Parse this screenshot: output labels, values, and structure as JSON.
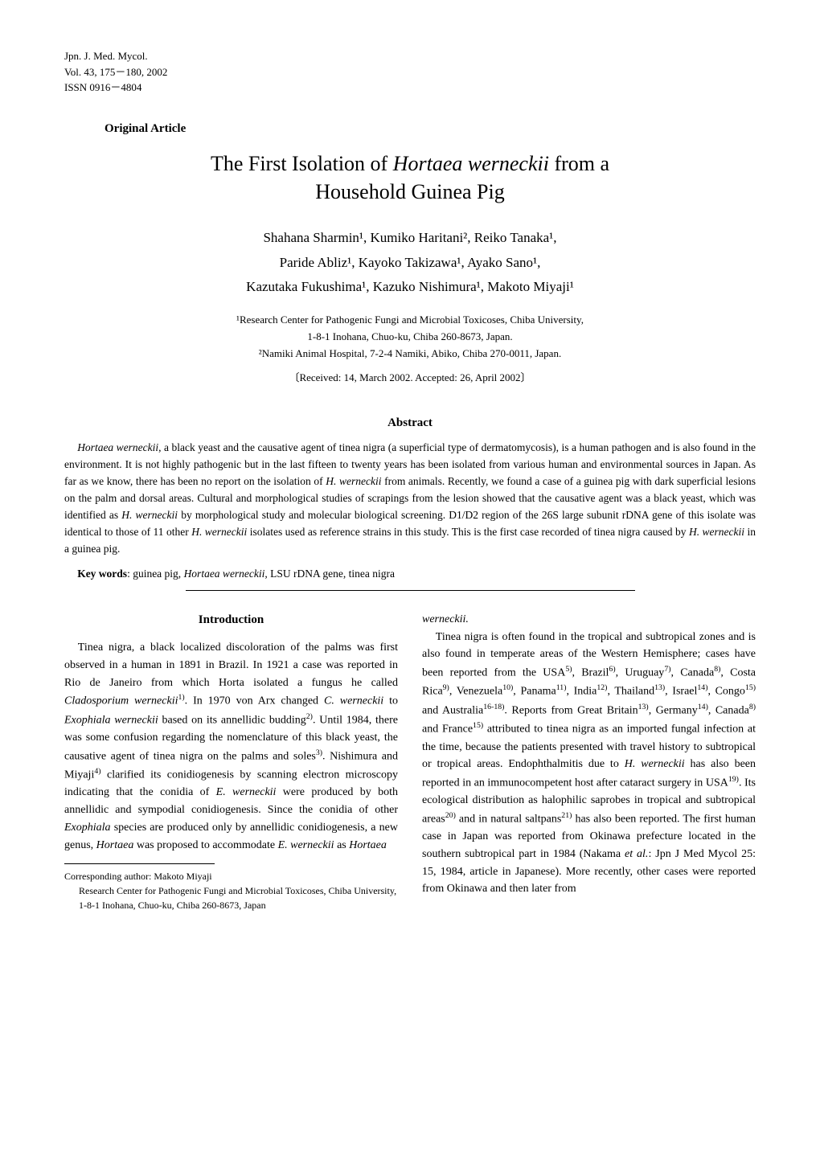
{
  "journal": {
    "line1": "Jpn. J. Med. Mycol.",
    "line2": "Vol. 43, 175－180, 2002",
    "line3": "ISSN 0916－4804"
  },
  "article_type": "Original Article",
  "title_line1": "The First Isolation of Hortaea werneckii from a",
  "title_line2": "Household Guinea Pig",
  "authors": {
    "line1": "Shahana Sharmin¹, Kumiko Haritani², Reiko Tanaka¹,",
    "line2": "Paride Abliz¹, Kayoko Takizawa¹, Ayako Sano¹,",
    "line3": "Kazutaka Fukushima¹, Kazuko Nishimura¹, Makoto Miyaji¹"
  },
  "affiliations": {
    "aff1": "¹Research Center for Pathogenic Fungi and Microbial Toxicoses, Chiba University,",
    "aff1b": "1-8-1 Inohana, Chuo-ku, Chiba 260-8673, Japan.",
    "aff2": "²Namiki Animal Hospital, 7-2-4 Namiki, Abiko, Chiba 270-0011, Japan."
  },
  "received": "〔Received: 14, March 2002. Accepted: 26, April 2002〕",
  "abstract_heading": "Abstract",
  "abstract_text": "Hortaea werneckii, a black yeast and the causative agent of tinea nigra (a superficial type of dermatomycosis), is a human pathogen and is also found in the environment. It is not highly pathogenic but in the last fifteen to twenty years has been isolated from various human and environmental sources in Japan. As far as we know, there has been no report on the isolation of H. werneckii from animals. Recently, we found a case of a guinea pig with dark superficial lesions on the palm and dorsal areas. Cultural and morphological studies of scrapings from the lesion showed that the causative agent was a black yeast, which was identified as H. werneckii by morphological study and molecular biological screening. D1/D2 region of the 26S large subunit rDNA gene of this isolate was identical to those of 11 other H. werneckii isolates used as reference strains in this study. This is the first case recorded of tinea nigra caused by H. werneckii in a guinea pig.",
  "keywords_label": "Key words",
  "keywords_text": ": guinea pig, Hortaea werneckii, LSU rDNA gene, tinea nigra",
  "intro_heading": "Introduction",
  "col1_text": "Tinea nigra, a black localized discoloration of the palms was first observed in a human in 1891 in Brazil. In 1921 a case was reported in Rio de Janeiro from which Horta isolated a fungus he called Cladosporium werneckii¹⁾. In 1970 von Arx changed C. werneckii to Exophiala werneckii based on its annellidic budding²⁾. Until 1984, there was some confusion regarding the nomenclature of this black yeast, the causative agent of tinea nigra on the palms and soles³⁾. Nishimura and Miyaji⁴⁾ clarified its conidiogenesis by scanning electron microscopy indicating that the conidia of E. werneckii were produced by both annellidic and sympodial conidiogenesis. Since the conidia of other Exophiala species are produced only by annellidic conidiogenesis, a new genus, Hortaea was proposed to accommodate E. werneckii as Hortaea",
  "col2_pre": "werneckii.",
  "col2_text": "Tinea nigra is often found in the tropical and subtropical zones and is also found in temperate areas of the Western Hemisphere; cases have been reported from the USA⁵⁾, Brazil⁶⁾, Uruguay⁷⁾, Canada⁸⁾, Costa Rica⁹⁾, Venezuela¹⁰⁾, Panama¹¹⁾, India¹²⁾, Thailand¹³⁾, Israel¹⁴⁾, Congo¹⁵⁾ and Australia¹⁶⁻¹⁸⁾. Reports from Great Britain¹³⁾, Germany¹⁴⁾, Canada⁸⁾ and France¹⁵⁾ attributed to tinea nigra as an imported fungal infection at the time, because the patients presented with travel history to subtropical or tropical areas. Endophthalmitis due to H. werneckii has also been reported in an immunocompetent host after cataract surgery in USA¹⁹⁾. Its ecological distribution as halophilic saprobes in tropical and subtropical areas²⁰⁾ and in natural saltpans²¹⁾ has also been reported. The first human case in Japan was reported from Okinawa prefecture located in the southern subtropical part in 1984 (Nakama et al.: Jpn J Med Mycol 25: 15, 1984, article in Japanese). More recently, other cases were reported from Okinawa and then later from",
  "footnote": {
    "line1": "Corresponding author: Makoto Miyaji",
    "line2": "Research Center for Pathogenic Fungi and Microbial Toxicoses, Chiba University,",
    "line3": "1-8-1 Inohana, Chuo-ku, Chiba 260-8673, Japan"
  }
}
